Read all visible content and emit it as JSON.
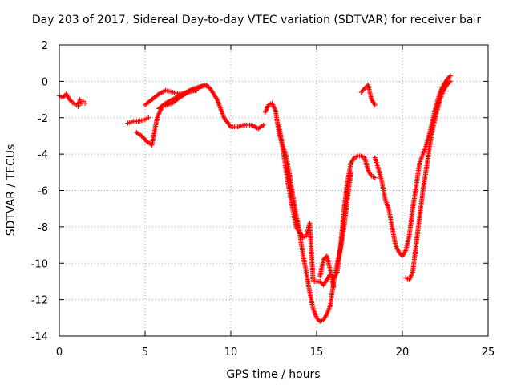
{
  "chart_data": {
    "type": "scatter",
    "title": "Day 203 of 2017, Sidereal Day-to-day VTEC variation (SDTVAR) for receiver bair",
    "xlabel": "GPS time / hours",
    "ylabel": "SDTVAR / TECUs",
    "xlim": [
      0,
      25
    ],
    "ylim": [
      -14,
      2
    ],
    "xticks": [
      "0",
      "5",
      "10",
      "15",
      "20",
      "25"
    ],
    "yticks": [
      "-14",
      "-12",
      "-10",
      "-8",
      "-6",
      "-4",
      "-2",
      "0",
      "2"
    ],
    "grid": true,
    "marker": "+",
    "series_color": "#ff0000",
    "segments": [
      {
        "x": [
          0.0,
          0.2,
          0.4,
          0.6,
          0.8,
          1.0,
          1.1
        ],
        "y": [
          -0.8,
          -0.9,
          -0.7,
          -1.0,
          -1.2,
          -1.3,
          -1.2
        ]
      },
      {
        "x": [
          1.1,
          1.2,
          1.3,
          1.4,
          1.5
        ],
        "y": [
          -1.4,
          -1.0,
          -1.2,
          -1.1,
          -1.2
        ]
      },
      {
        "x": [
          4.0,
          4.3,
          4.6,
          5.0,
          5.2
        ],
        "y": [
          -2.3,
          -2.2,
          -2.2,
          -2.1,
          -2.0
        ]
      },
      {
        "x": [
          4.5,
          4.8,
          5.1,
          5.4,
          5.7,
          6.0,
          6.3,
          6.6,
          7.0,
          7.5,
          8.0,
          8.5,
          8.8,
          9.2,
          9.6,
          10.0,
          10.4,
          10.8,
          11.2,
          11.6,
          11.9
        ],
        "y": [
          -2.8,
          -3.0,
          -3.3,
          -3.5,
          -2.0,
          -1.4,
          -1.3,
          -1.2,
          -0.9,
          -0.6,
          -0.4,
          -0.2,
          -0.4,
          -1.0,
          -2.0,
          -2.5,
          -2.5,
          -2.4,
          -2.4,
          -2.6,
          -2.4
        ]
      },
      {
        "x": [
          5.0,
          5.4,
          5.8,
          6.2,
          6.6,
          7.0,
          7.4,
          7.8,
          8.2,
          8.6
        ],
        "y": [
          -1.3,
          -1.0,
          -0.7,
          -0.5,
          -0.6,
          -0.7,
          -0.6,
          -0.4,
          -0.3,
          -0.2
        ]
      },
      {
        "x": [
          5.8,
          6.2,
          6.6,
          7.0,
          7.5,
          8.0
        ],
        "y": [
          -1.5,
          -1.2,
          -1.0,
          -0.8,
          -0.6,
          -0.5
        ]
      },
      {
        "x": [
          12.0,
          12.2,
          12.4,
          12.6,
          12.8,
          13.0,
          13.2,
          13.4,
          13.6,
          13.8,
          14.0,
          14.2,
          14.4,
          14.6,
          14.8,
          15.0,
          15.2,
          15.4,
          15.6,
          15.8,
          16.0,
          16.2,
          16.4,
          16.6,
          16.8,
          17.0,
          17.2,
          17.4,
          17.6,
          17.8,
          18.0,
          18.2,
          18.4
        ],
        "y": [
          -1.7,
          -1.3,
          -1.2,
          -1.6,
          -2.8,
          -3.5,
          -4.0,
          -5.0,
          -6.2,
          -7.3,
          -8.2,
          -8.6,
          -8.5,
          -7.8,
          -11.0,
          -11.0,
          -11.0,
          -11.2,
          -10.9,
          -10.6,
          -10.8,
          -10.5,
          -9.0,
          -7.0,
          -5.5,
          -4.5,
          -4.2,
          -4.1,
          -4.1,
          -4.2,
          -4.9,
          -5.2,
          -5.3
        ]
      },
      {
        "x": [
          12.8,
          13.0,
          13.2,
          13.4,
          13.6,
          13.8,
          14.0,
          14.2,
          14.4,
          14.6,
          14.8,
          15.0,
          15.2,
          15.4,
          15.6,
          15.8,
          16.0,
          16.2,
          16.4,
          16.6,
          16.8,
          17.0
        ],
        "y": [
          -2.4,
          -3.5,
          -4.8,
          -6.0,
          -7.0,
          -8.0,
          -8.3,
          -9.5,
          -10.5,
          -11.6,
          -12.5,
          -13.0,
          -13.2,
          -13.1,
          -12.8,
          -12.3,
          -11.0,
          -10.0,
          -9.2,
          -8.0,
          -6.5,
          -5.0
        ]
      },
      {
        "x": [
          15.2,
          15.4,
          15.6,
          15.8,
          16.0
        ],
        "y": [
          -10.7,
          -9.8,
          -9.6,
          -10.4,
          -11.3
        ]
      },
      {
        "x": [
          17.6,
          17.8,
          18.0,
          18.2,
          18.4
        ],
        "y": [
          -0.6,
          -0.4,
          -0.2,
          -1.0,
          -1.3
        ]
      },
      {
        "x": [
          18.4,
          18.6,
          18.8,
          19.0,
          19.2,
          19.4,
          19.6,
          19.8,
          20.0,
          20.2,
          20.4,
          20.6,
          20.8,
          21.0,
          21.2,
          21.4,
          21.6,
          21.8,
          22.0,
          22.2,
          22.4,
          22.6,
          22.8
        ],
        "y": [
          -4.2,
          -4.8,
          -5.5,
          -6.5,
          -7.0,
          -8.0,
          -9.0,
          -9.4,
          -9.6,
          -9.3,
          -8.5,
          -7.0,
          -5.8,
          -4.5,
          -4.0,
          -3.5,
          -2.8,
          -2.0,
          -1.2,
          -0.6,
          -0.2,
          0.1,
          0.3
        ]
      },
      {
        "x": [
          20.2,
          20.4,
          20.6,
          20.8,
          21.0,
          21.2,
          21.4,
          21.6,
          21.8,
          22.0,
          22.2,
          22.4,
          22.6,
          22.8
        ],
        "y": [
          -10.8,
          -10.9,
          -10.5,
          -9.0,
          -7.5,
          -6.0,
          -4.8,
          -3.5,
          -2.5,
          -1.7,
          -1.0,
          -0.5,
          -0.2,
          0.0
        ]
      }
    ]
  }
}
